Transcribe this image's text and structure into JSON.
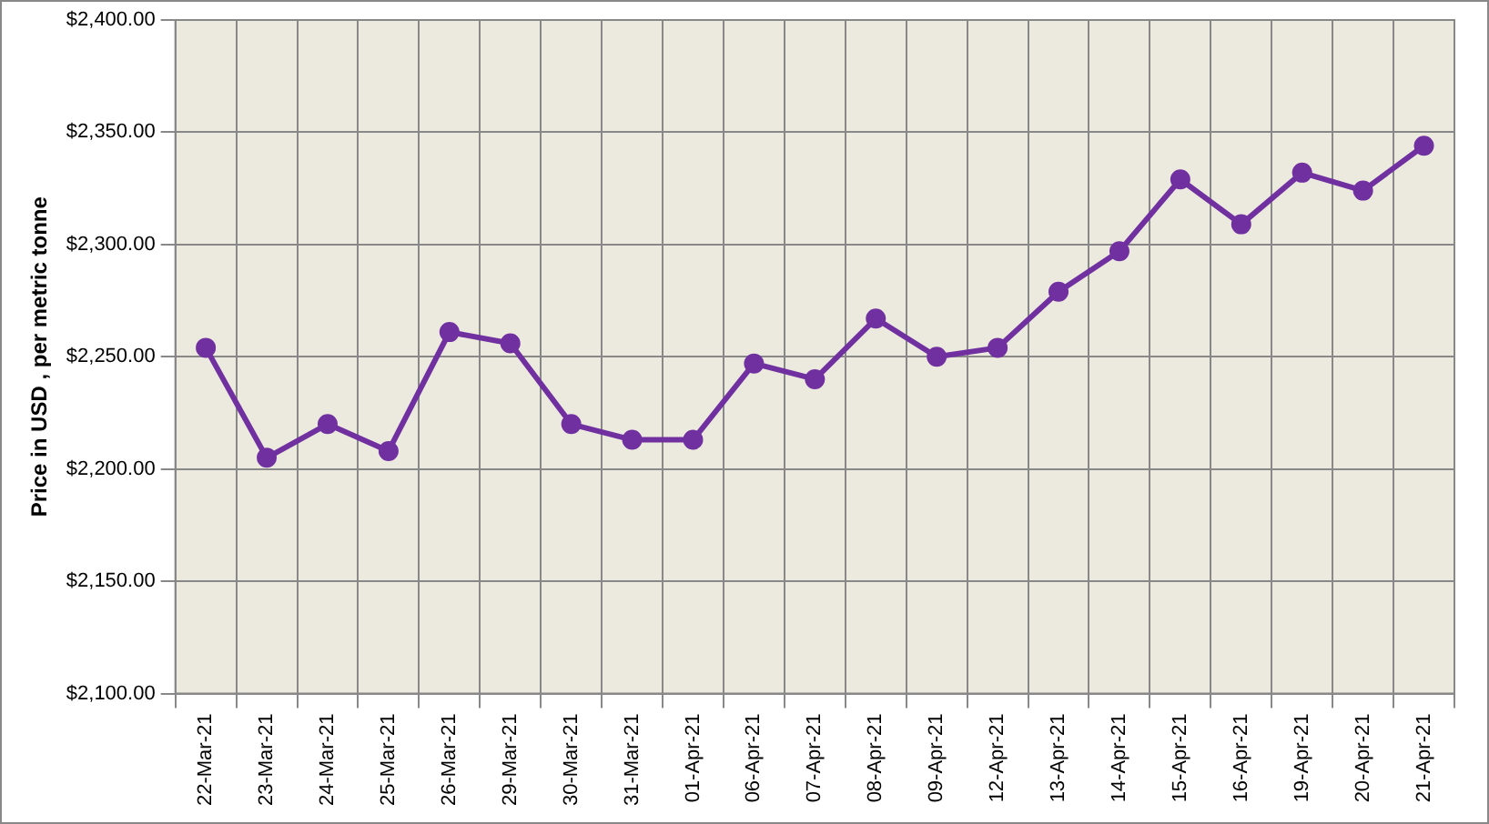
{
  "chart_data": {
    "type": "line",
    "ylabel": "Price in USD , per metric tonne",
    "categories": [
      "22-Mar-21",
      "23-Mar-21",
      "24-Mar-21",
      "25-Mar-21",
      "26-Mar-21",
      "29-Mar-21",
      "30-Mar-21",
      "31-Mar-21",
      "01-Apr-21",
      "06-Apr-21",
      "07-Apr-21",
      "08-Apr-21",
      "09-Apr-21",
      "12-Apr-21",
      "13-Apr-21",
      "14-Apr-21",
      "15-Apr-21",
      "16-Apr-21",
      "19-Apr-21",
      "20-Apr-21",
      "21-Apr-21"
    ],
    "series": [
      {
        "color": "#7030a0",
        "values": [
          2254,
          2205,
          2220,
          2208,
          2261,
          2256,
          2220,
          2213,
          2213,
          2247,
          2240,
          2267,
          2250,
          2254,
          2279,
          2297,
          2329,
          2309,
          2332,
          2324,
          2344
        ]
      }
    ],
    "ylim": [
      2100,
      2400
    ],
    "yticks": [
      {
        "value": 2100,
        "label": "$2,100.00"
      },
      {
        "value": 2150,
        "label": "$2,150.00"
      },
      {
        "value": 2200,
        "label": "$2,200.00"
      },
      {
        "value": 2250,
        "label": "$2,250.00"
      },
      {
        "value": 2300,
        "label": "$2,300.00"
      },
      {
        "value": 2350,
        "label": "$2,350.00"
      },
      {
        "value": 2400,
        "label": "$2,400.00"
      }
    ],
    "grid": true,
    "marker": "circle",
    "line_style": "solid"
  }
}
